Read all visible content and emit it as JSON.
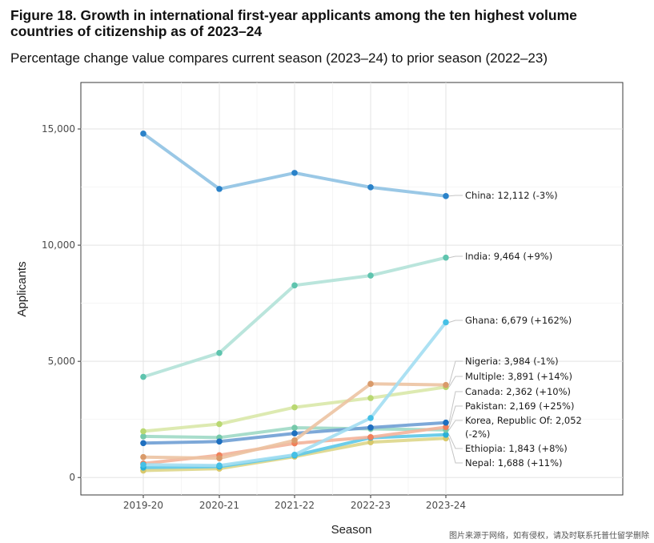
{
  "header": {
    "title": "Figure 18. Growth in international first-year applicants among the ten highest volume countries of citizenship as of 2023–24",
    "subtitle": "Percentage change value compares current season (2023–24) to prior season (2022–23)"
  },
  "watermark": "图片来源于网络，如有侵权，请及时联系托普仕留学删除",
  "chart_data": {
    "type": "line",
    "title": "Figure 18. Growth in international first-year applicants among the ten highest volume countries of citizenship as of 2023–24",
    "xlabel": "Season",
    "ylabel": "Applicants",
    "categories": [
      "2019-20",
      "2020-21",
      "2021-22",
      "2022-23",
      "2023-24"
    ],
    "ylim": [
      -750,
      17000
    ],
    "yticks": [
      0,
      5000,
      10000,
      15000
    ],
    "ytick_labels": [
      "0",
      "5,000",
      "10,000",
      "15,000"
    ],
    "grid": true,
    "series": [
      {
        "name": "Nepal",
        "label": "Nepal: 1,688 (+11%)",
        "color": "#ddd68a",
        "dot": "#d8c86a",
        "values": [
          300,
          380,
          900,
          1520,
          1688
        ]
      },
      {
        "name": "Ethiopia",
        "label": "Ethiopia: 1,843 (+8%)",
        "color": "#5cc8e8",
        "dot": "#2ab0d8",
        "values": [
          430,
          470,
          950,
          1710,
          1843
        ]
      },
      {
        "name": "Korea, Republic Of",
        "label": "Korea, Republic Of: 2,052",
        "label2": "(-2%)",
        "color": "#9fd9c5",
        "dot": "#76c9aa",
        "values": [
          1770,
          1720,
          2140,
          2095,
          2052
        ]
      },
      {
        "name": "Pakistan",
        "label": "Pakistan: 2,169 (+25%)",
        "color": "#f3b39a",
        "dot": "#f0805a",
        "values": [
          600,
          960,
          1470,
          1740,
          2169
        ]
      },
      {
        "name": "Canada",
        "label": "Canada: 2,362 (+10%)",
        "color": "#6f9ed4",
        "dot": "#1e6fbf",
        "values": [
          1480,
          1550,
          1900,
          2150,
          2362
        ]
      },
      {
        "name": "Multiple",
        "label": "Multiple: 3,891 (+14%)",
        "color": "#d9e8a8",
        "dot": "#b9d872",
        "values": [
          1990,
          2300,
          3020,
          3420,
          3891
        ]
      },
      {
        "name": "Nigeria",
        "label": "Nigeria: 3,984 (-1%)",
        "color": "#ecc3a2",
        "dot": "#d99a6a",
        "values": [
          880,
          830,
          1600,
          4030,
          3984
        ]
      },
      {
        "name": "Ghana",
        "label": "Ghana: 6,679 (+162%)",
        "color": "#a3def2",
        "dot": "#45c0e6",
        "values": [
          550,
          520,
          980,
          2560,
          6679
        ]
      },
      {
        "name": "India",
        "label": "India: 9,464 (+9%)",
        "color": "#b2e2d8",
        "dot": "#5fc4ae",
        "values": [
          4330,
          5360,
          8270,
          8690,
          9464
        ]
      },
      {
        "name": "China",
        "label": "China: 12,112 (-3%)",
        "color": "#8fc2e3",
        "dot": "#2a82c9",
        "values": [
          14800,
          12420,
          13110,
          12490,
          12112
        ]
      }
    ]
  }
}
